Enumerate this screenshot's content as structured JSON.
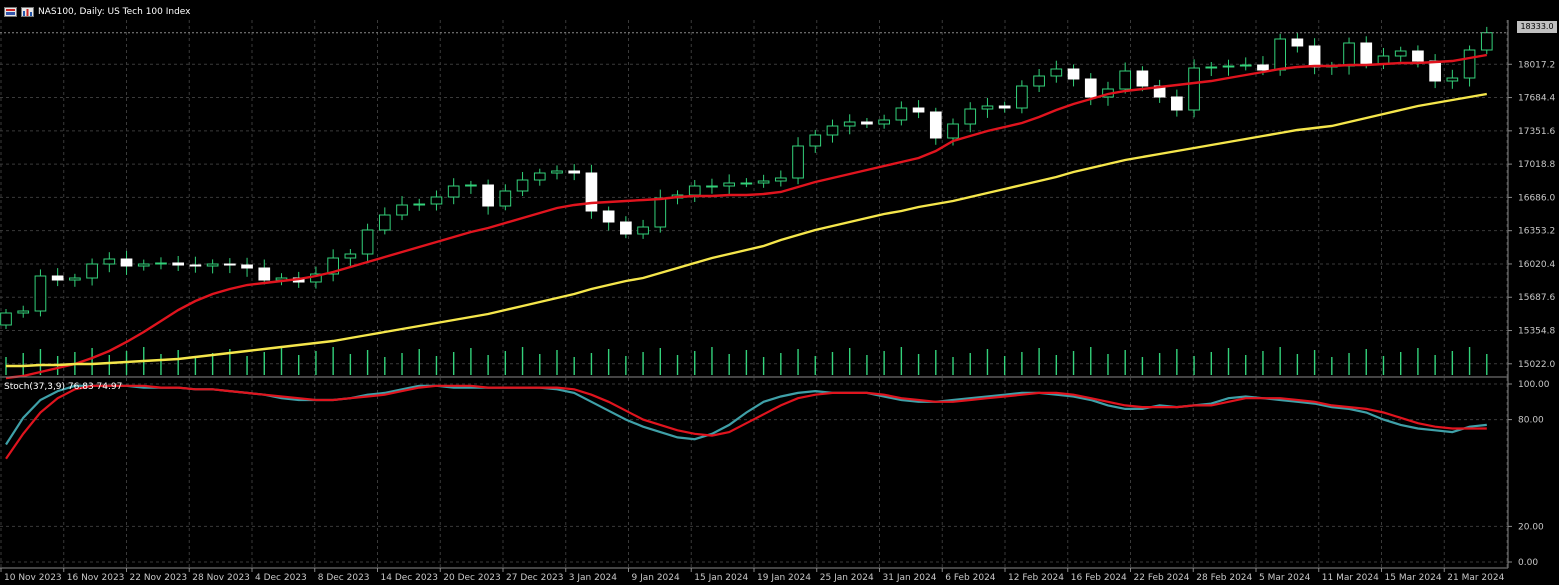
{
  "header": {
    "title": "NAS100, Daily:  US Tech 100 Index"
  },
  "oscillator_header": {
    "label": "Stoch(37,3,9) 76.83 74.97"
  },
  "price_badge": "18333.0",
  "colors": {
    "background": "#000000",
    "grid": "#3a3a3a",
    "ma_fast": "#e0141e",
    "ma_slow": "#f5e64b",
    "candle": "#ffffff",
    "wick": "#33d17a",
    "volume": "#33d17a",
    "stoch_main": "#3fa0a8",
    "stoch_signal": "#e0141e"
  },
  "chart_data": [
    {
      "type": "candlestick",
      "title": "NAS100, Daily:  US Tech 100 Index",
      "y_ticks": [
        "18017.2",
        "17684.4",
        "17351.6",
        "17018.8",
        "16686.0",
        "16353.2",
        "16020.4",
        "15687.6",
        "15354.8",
        "15022.0"
      ],
      "ylim": [
        14900,
        18460
      ],
      "x_ticks": [
        "10 Nov 2023",
        "16 Nov 2023",
        "22 Nov 2023",
        "28 Nov 2023",
        "4 Dec 2023",
        "8 Dec 2023",
        "14 Dec 2023",
        "20 Dec 2023",
        "27 Dec 2023",
        "3 Jan 2024",
        "9 Jan 2024",
        "15 Jan 2024",
        "19 Jan 2024",
        "25 Jan 2024",
        "31 Jan 2024",
        "6 Feb 2024",
        "12 Feb 2024",
        "16 Feb 2024",
        "22 Feb 2024",
        "28 Feb 2024",
        "5 Mar 2024",
        "11 Mar 2024",
        "15 Mar 2024",
        "21 Mar 2024"
      ],
      "closes": [
        15530,
        15550,
        15900,
        15860,
        15880,
        16020,
        16070,
        16000,
        16020,
        16030,
        16010,
        16000,
        16020,
        16010,
        15980,
        15860,
        15880,
        15840,
        15920,
        16080,
        16120,
        16360,
        16510,
        16610,
        16620,
        16690,
        16800,
        16810,
        16600,
        16750,
        16860,
        16930,
        16950,
        16930,
        16550,
        16440,
        16320,
        16390,
        16680,
        16710,
        16800,
        16800,
        16830,
        16830,
        16850,
        16880,
        17200,
        17310,
        17400,
        17440,
        17420,
        17460,
        17580,
        17540,
        17280,
        17420,
        17570,
        17600,
        17580,
        17800,
        17900,
        17970,
        17870,
        17690,
        17770,
        17950,
        17800,
        17690,
        17560,
        17980,
        17990,
        18000,
        18010,
        17960,
        18270,
        18200,
        17990,
        18000,
        18230,
        18020,
        18100,
        18150,
        18050,
        17850,
        17880,
        18160,
        18333
      ],
      "series": [
        {
          "name": "MA fast",
          "values": [
            14880,
            14900,
            14940,
            14980,
            15020,
            15080,
            15150,
            15240,
            15340,
            15450,
            15560,
            15650,
            15720,
            15770,
            15810,
            15830,
            15850,
            15870,
            15900,
            15940,
            15990,
            16040,
            16090,
            16140,
            16190,
            16240,
            16290,
            16340,
            16380,
            16430,
            16480,
            16530,
            16580,
            16610,
            16630,
            16640,
            16650,
            16660,
            16670,
            16690,
            16700,
            16700,
            16710,
            16710,
            16720,
            16740,
            16790,
            16840,
            16880,
            16920,
            16960,
            17000,
            17040,
            17080,
            17150,
            17250,
            17300,
            17350,
            17390,
            17430,
            17490,
            17560,
            17620,
            17670,
            17720,
            17750,
            17770,
            17790,
            17810,
            17830,
            17850,
            17880,
            17910,
            17940,
            17970,
            17990,
            18000,
            18000,
            18010,
            18010,
            18020,
            18030,
            18030,
            18040,
            18050,
            18080,
            18110
          ]
        },
        {
          "name": "MA slow",
          "values": [
            15000,
            15000,
            15010,
            15010,
            15020,
            15020,
            15030,
            15040,
            15050,
            15060,
            15070,
            15090,
            15110,
            15130,
            15150,
            15170,
            15190,
            15210,
            15230,
            15250,
            15280,
            15310,
            15340,
            15370,
            15400,
            15430,
            15460,
            15490,
            15520,
            15560,
            15600,
            15640,
            15680,
            15720,
            15770,
            15810,
            15850,
            15880,
            15930,
            15980,
            16030,
            16080,
            16120,
            16160,
            16200,
            16260,
            16310,
            16360,
            16400,
            16440,
            16480,
            16520,
            16550,
            16590,
            16620,
            16650,
            16690,
            16730,
            16770,
            16810,
            16850,
            16890,
            16940,
            16980,
            17020,
            17060,
            17090,
            17120,
            17150,
            17180,
            17210,
            17240,
            17270,
            17300,
            17330,
            17360,
            17380,
            17400,
            17440,
            17480,
            17520,
            17560,
            17600,
            17630,
            17660,
            17690,
            17720
          ]
        }
      ]
    },
    {
      "type": "line",
      "title": "Stoch(37,3,9) 76.83 74.97",
      "y_ticks": [
        "100.00",
        "80.00",
        "20.00",
        "0.00"
      ],
      "ylim": [
        0,
        100
      ],
      "series": [
        {
          "name": "Stoch main",
          "values": [
            66,
            81,
            91,
            96,
            99,
            99,
            99,
            99,
            98,
            98,
            98,
            97,
            97,
            96,
            95,
            94,
            92,
            91,
            91,
            91,
            92,
            94,
            95,
            97,
            99,
            99,
            98,
            98,
            98,
            98,
            98,
            98,
            97,
            95,
            90,
            85,
            80,
            76,
            73,
            70,
            69,
            72,
            77,
            84,
            90,
            93,
            95,
            96,
            95,
            95,
            95,
            93,
            91,
            90,
            90,
            91,
            92,
            93,
            94,
            95,
            95,
            94,
            93,
            91,
            88,
            86,
            86,
            88,
            87,
            88,
            89,
            92,
            93,
            92,
            91,
            90,
            89,
            87,
            86,
            84,
            80,
            77,
            75,
            74,
            73,
            76,
            77
          ]
        },
        {
          "name": "Stoch signal",
          "values": [
            58,
            72,
            84,
            92,
            97,
            99,
            99,
            99,
            99,
            98,
            98,
            97,
            97,
            96,
            95,
            94,
            93,
            92,
            91,
            91,
            92,
            93,
            94,
            96,
            98,
            99,
            99,
            99,
            98,
            98,
            98,
            98,
            98,
            97,
            94,
            90,
            85,
            80,
            77,
            74,
            72,
            71,
            73,
            78,
            83,
            88,
            92,
            94,
            95,
            95,
            95,
            94,
            92,
            91,
            90,
            90,
            91,
            92,
            93,
            94,
            95,
            95,
            94,
            92,
            90,
            88,
            87,
            87,
            87,
            88,
            88,
            90,
            92,
            92,
            92,
            91,
            90,
            88,
            87,
            86,
            84,
            81,
            78,
            76,
            75,
            75,
            75
          ]
        }
      ]
    }
  ]
}
